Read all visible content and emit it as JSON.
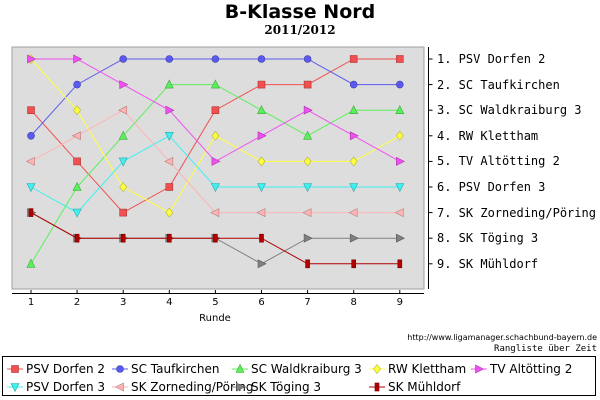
{
  "chart_data": {
    "type": "line",
    "title": "B-Klasse Nord",
    "subtitle": "2011/2012",
    "xlabel": "Runde",
    "ylabel": "",
    "x": [
      1,
      2,
      3,
      4,
      5,
      6,
      7,
      8,
      9
    ],
    "ylim": [
      9,
      1
    ],
    "y_inverted": true,
    "grid": false,
    "legend_position": "bottom",
    "rank_labels": [
      "1. PSV Dorfen 2",
      "2. SC Taufkirchen",
      "3. SC Waldkraiburg 3",
      "4. RW Klettham",
      "5. TV Altötting 2",
      "6. PSV Dorfen 3",
      "7. SK Zorneding/Pöring",
      "8. SK Töging 3",
      "9. SK Mühldorf"
    ],
    "source": "http://www.ligamanager.schachbund-bayern.de",
    "caption": "Rangliste über Zeit",
    "series": [
      {
        "name": "PSV Dorfen 2",
        "color": "#f05050",
        "marker": "square",
        "values": [
          3,
          5,
          7,
          6,
          3,
          2,
          2,
          1,
          1
        ]
      },
      {
        "name": "SC Taufkirchen",
        "color": "#5a5af0",
        "marker": "circle",
        "values": [
          4,
          2,
          1,
          1,
          1,
          1,
          1,
          2,
          2
        ]
      },
      {
        "name": "SC Waldkraiburg 3",
        "color": "#5af05a",
        "marker": "triangle-up",
        "values": [
          9,
          6,
          4,
          2,
          2,
          3,
          4,
          3,
          3
        ]
      },
      {
        "name": "RW Klettham",
        "color": "#ffff40",
        "marker": "diamond",
        "values": [
          1,
          3,
          6,
          7,
          4,
          5,
          5,
          5,
          4
        ]
      },
      {
        "name": "TV Altötting 2",
        "color": "#f050f0",
        "marker": "triangle-right",
        "values": [
          1,
          1,
          2,
          3,
          5,
          4,
          3,
          4,
          5
        ]
      },
      {
        "name": "PSV Dorfen 3",
        "color": "#40f0f0",
        "marker": "triangle-down",
        "values": [
          6,
          7,
          5,
          4,
          6,
          6,
          6,
          6,
          6
        ]
      },
      {
        "name": "SK Zorneding/Pöring",
        "color": "#ffb4b4",
        "marker": "triangle-left",
        "values": [
          5,
          4,
          3,
          5,
          7,
          7,
          7,
          7,
          7
        ]
      },
      {
        "name": "SK Töging 3",
        "color": "#808080",
        "marker": "triangle-right-solid",
        "values": [
          7,
          8,
          8,
          8,
          8,
          9,
          8,
          8,
          8
        ]
      },
      {
        "name": "SK Mühldorf",
        "color": "#b00000",
        "marker": "bar",
        "values": [
          7,
          8,
          8,
          8,
          8,
          8,
          9,
          9,
          9
        ]
      }
    ]
  }
}
